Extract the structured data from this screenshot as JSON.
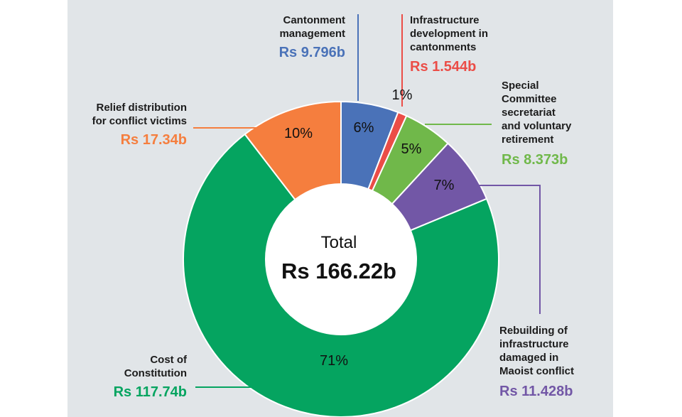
{
  "chart_data": {
    "type": "pie",
    "center_title": "Total",
    "center_value": "Rs 166.22b",
    "slices": [
      {
        "name": "Cantonment management",
        "value": 9.796,
        "value_label": "Rs 9.796b",
        "pct_label": "6%",
        "color": "#4a72b8"
      },
      {
        "name": "Infrastructure development in cantonments",
        "value": 1.544,
        "value_label": "Rs 1.544b",
        "pct_label": "1%",
        "color": "#eb4d47"
      },
      {
        "name": "Special Committee secretariat and voluntary retirement",
        "value": 8.373,
        "value_label": "Rs 8.373b",
        "pct_label": "5%",
        "color": "#70b84a"
      },
      {
        "name": "Rebuilding of infrastructure damaged in Maoist conflict",
        "value": 11.428,
        "value_label": "Rs 11.428b",
        "pct_label": "7%",
        "color": "#7257a6"
      },
      {
        "name": "Cost of Constitution",
        "value": 117.74,
        "value_label": "Rs 117.74b",
        "pct_label": "71%",
        "color": "#05a460"
      },
      {
        "name": "Relief distribution for conflict victims",
        "value": 17.34,
        "value_label": "Rs 17.34b",
        "pct_label": "10%",
        "color": "#f57e3e"
      }
    ]
  },
  "annotations": {
    "cantonment": {
      "line1": "Cantonment",
      "line2": "management"
    },
    "infrastructure": {
      "line1": "Infrastructure",
      "line2": "development in",
      "line3": "cantonments"
    },
    "special": {
      "line1": "Special",
      "line2": "Committee",
      "line3": "secretariat",
      "line4": "and voluntary",
      "line5": "retirement"
    },
    "rebuilding": {
      "line1": "Rebuilding of",
      "line2": "infrastructure",
      "line3": "damaged in",
      "line4": "Maoist conflict"
    },
    "constitution": {
      "line1": "Cost of",
      "line2": "Constitution"
    },
    "relief": {
      "line1": "Relief distribution",
      "line2": "for conflict victims"
    }
  }
}
